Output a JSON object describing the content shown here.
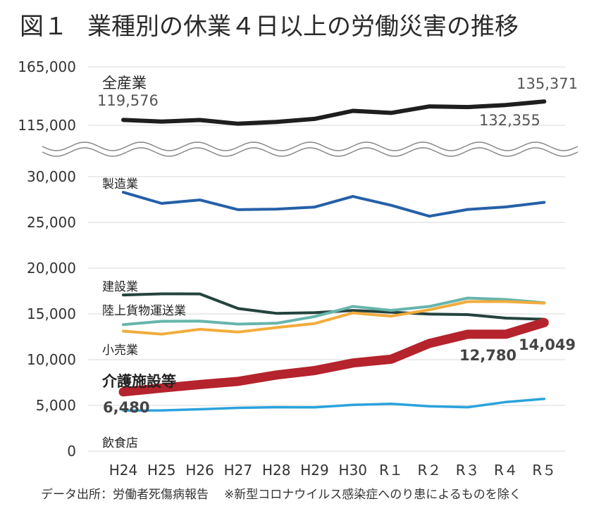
{
  "title": {
    "figure_no": "図１",
    "text": "業種別の休業４日以上の労働災害の推移"
  },
  "source": {
    "text": "データ出所：労働者死傷病報告",
    "note": "※新型コロナウイルス感染症へのり患によるものを除く"
  },
  "chart_data": {
    "type": "line",
    "categories": [
      "H24",
      "H25",
      "H26",
      "H27",
      "H28",
      "H29",
      "H30",
      "R１",
      "R２",
      "R３",
      "R４",
      "R５"
    ],
    "y_axis": {
      "upper_segment": {
        "ticks": [
          "165,000",
          "115,000"
        ],
        "range": [
          115000,
          165000
        ]
      },
      "lower_segment": {
        "ticks": [
          "30,000",
          "25,000",
          "20,000",
          "15,000",
          "10,000",
          "5,000",
          "0"
        ],
        "range": [
          0,
          30000
        ]
      },
      "axis_break": true
    },
    "grid": "horizontal",
    "series": [
      {
        "name": "全産業",
        "color": "#1e1e1e",
        "values": [
          119576,
          118157,
          119535,
          116311,
          117910,
          120460,
          127329,
          125611,
          131156,
          130586,
          132355,
          135371
        ]
      },
      {
        "name": "製造業",
        "color": "#2560a8",
        "values": [
          28291,
          27077,
          27452,
          26391,
          26454,
          26674,
          27842,
          26873,
          25675,
          26415,
          26694,
          27194
        ]
      },
      {
        "name": "建設業",
        "color": "#24433e",
        "values": [
          17073,
          17189,
          17184,
          15584,
          15058,
          15129,
          15374,
          15183,
          14977,
          14926,
          14539,
          14414
        ]
      },
      {
        "name": "陸上貨物運送業",
        "color": "#66b5ac",
        "values": [
          13834,
          14190,
          14210,
          13885,
          13977,
          14706,
          15818,
          15382,
          15815,
          16732,
          16580,
          16215
        ]
      },
      {
        "name": "小売業",
        "color": "#f2ac3c",
        "values": [
          13115,
          12787,
          13316,
          13014,
          13505,
          13943,
          15107,
          14751,
          15449,
          16346,
          16346,
          16174
        ]
      },
      {
        "name": "介護施設等",
        "color": "#b5232c",
        "values": [
          6480,
          6890,
          7280,
          7620,
          8320,
          8810,
          9640,
          10045,
          11775,
          12780,
          12780,
          14049
        ]
      },
      {
        "name": "飲食店",
        "color": "#2aa3dc",
        "values": [
          4429,
          4450,
          4577,
          4731,
          4798,
          4792,
          5054,
          5176,
          4909,
          4797,
          5370,
          5715
        ]
      }
    ],
    "data_labels": [
      {
        "series": "全産業",
        "category": "H24",
        "text": "119,576"
      },
      {
        "series": "全産業",
        "category": "R４",
        "text": "132,355"
      },
      {
        "series": "全産業",
        "category": "R５",
        "text": "135,371"
      },
      {
        "series": "介護施設等",
        "category": "H24",
        "text": "6,480"
      },
      {
        "series": "介護施設等",
        "category": "R３",
        "text": "12,780"
      },
      {
        "series": "介護施設等",
        "category": "R５",
        "text": "14,049"
      }
    ]
  }
}
